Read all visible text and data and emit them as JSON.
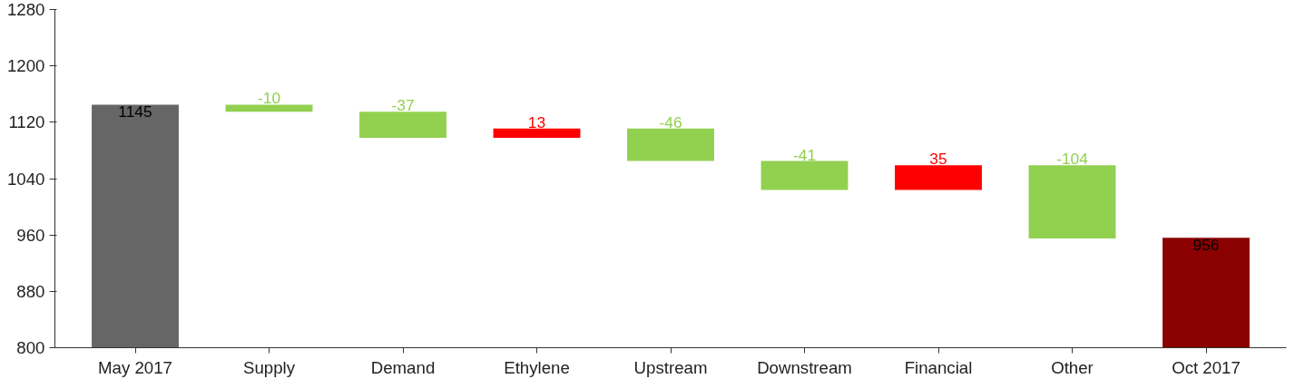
{
  "chart_data": {
    "type": "bar",
    "categories": [
      "May 2017",
      "Supply",
      "Demand",
      "Ethylene",
      "Upstream",
      "Downstream",
      "Financial",
      "Other",
      "Oct 2017"
    ],
    "values": [
      1145,
      -10,
      -37,
      13,
      -46,
      -41,
      35,
      -104,
      956
    ],
    "base": [
      null,
      1145,
      1135,
      1098,
      1111,
      1065,
      1024,
      1059,
      null
    ],
    "colors": [
      "#666666",
      "#92d050",
      "#92d050",
      "#ff0000",
      "#92d050",
      "#92d050",
      "#ff0000",
      "#92d050",
      "#8b0000"
    ],
    "ylim": [
      800,
      1280
    ],
    "yticks": [
      800,
      880,
      960,
      1040,
      1120,
      1200,
      1280
    ],
    "data_labels": true,
    "grid": false
  }
}
